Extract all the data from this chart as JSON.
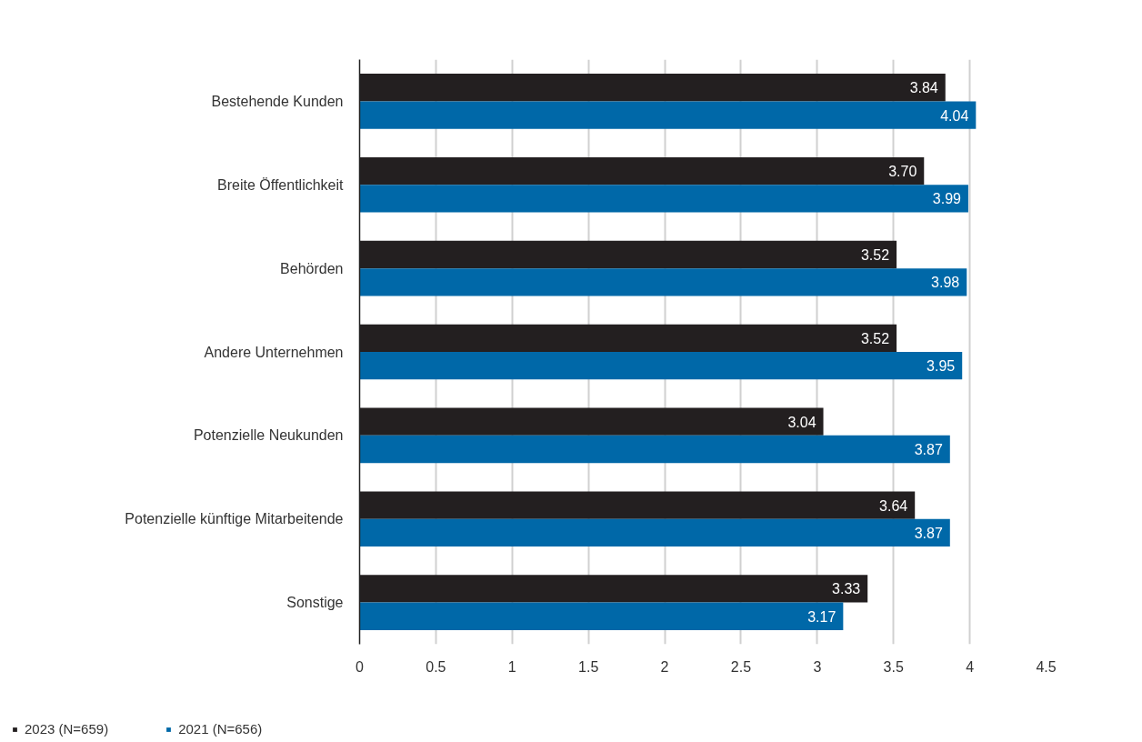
{
  "chart_data": {
    "type": "bar",
    "orientation": "horizontal",
    "categories": [
      "Bestehende Kunden",
      "Breite Öffentlichkeit",
      "Behörden",
      "Andere Unternehmen",
      "Potenzielle Neukunden",
      "Potenzielle künftige Mitarbeitende",
      "Sonstige"
    ],
    "series": [
      {
        "name": "2023 (N=659)",
        "color": "#231f20",
        "values": [
          3.84,
          3.7,
          3.52,
          3.52,
          3.04,
          3.64,
          3.33
        ],
        "value_labels": [
          "3.84",
          "3.70",
          "3.52",
          "3.52",
          "3.04",
          "3.64",
          "3.33"
        ]
      },
      {
        "name": "2021 (N=656)",
        "color": "#0068a8",
        "values": [
          4.04,
          3.99,
          3.98,
          3.95,
          3.87,
          3.87,
          3.17
        ],
        "value_labels": [
          "4.04",
          "3.99",
          "3.98",
          "3.95",
          "3.87",
          "3.87",
          "3.17"
        ]
      }
    ],
    "xlim": [
      0,
      4.5
    ],
    "xticks": [
      0,
      0.5,
      1,
      1.5,
      2,
      2.5,
      3,
      3.5,
      4,
      4.5
    ],
    "grid": "x",
    "legend": "bottom left"
  }
}
